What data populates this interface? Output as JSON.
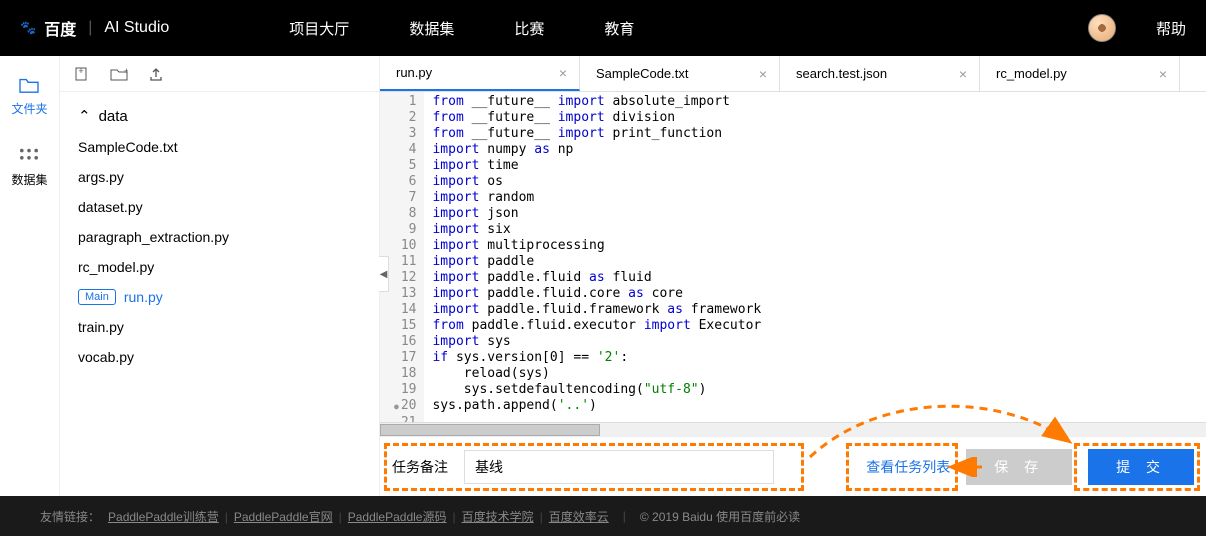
{
  "colors": {
    "accent": "#1a73e8",
    "highlight_border": "#ff7a00",
    "nav_bg": "#000000",
    "footer_bg": "#1a1a1a"
  },
  "nav": {
    "logo_baidu": "Bai度",
    "logo_text": "百度",
    "logo_studio": "AI Studio",
    "items": [
      "项目大厅",
      "数据集",
      "比赛",
      "教育"
    ],
    "help": "帮助"
  },
  "rail": {
    "files": "文件夹",
    "datasets": "数据集"
  },
  "files": {
    "folder": "data",
    "items": [
      {
        "name": "SampleCode.txt",
        "main": false,
        "active": false
      },
      {
        "name": "args.py",
        "main": false,
        "active": false
      },
      {
        "name": "dataset.py",
        "main": false,
        "active": false
      },
      {
        "name": "paragraph_extraction.py",
        "main": false,
        "active": false
      },
      {
        "name": "rc_model.py",
        "main": false,
        "active": false
      },
      {
        "name": "run.py",
        "main": true,
        "active": true
      },
      {
        "name": "train.py",
        "main": false,
        "active": false
      },
      {
        "name": "vocab.py",
        "main": false,
        "active": false
      }
    ],
    "main_badge": "Main"
  },
  "tabs": [
    {
      "name": "run.py",
      "active": true
    },
    {
      "name": "SampleCode.txt",
      "active": false
    },
    {
      "name": "search.test.json",
      "active": false
    },
    {
      "name": "rc_model.py",
      "active": false
    }
  ],
  "code": {
    "breakpoint_line": 20,
    "lines": [
      [
        [
          "kw",
          "from"
        ],
        [
          "",
          " __future__ "
        ],
        [
          "kw",
          "import"
        ],
        [
          "",
          " absolute_import"
        ]
      ],
      [
        [
          "kw",
          "from"
        ],
        [
          "",
          " __future__ "
        ],
        [
          "kw",
          "import"
        ],
        [
          "",
          " division"
        ]
      ],
      [
        [
          "kw",
          "from"
        ],
        [
          "",
          " __future__ "
        ],
        [
          "kw",
          "import"
        ],
        [
          "",
          " print_function"
        ]
      ],
      [
        [
          "",
          ""
        ]
      ],
      [
        [
          "kw",
          "import"
        ],
        [
          "",
          " numpy "
        ],
        [
          "kw",
          "as"
        ],
        [
          "",
          " np"
        ]
      ],
      [
        [
          "kw",
          "import"
        ],
        [
          "",
          " time"
        ]
      ],
      [
        [
          "kw",
          "import"
        ],
        [
          "",
          " os"
        ]
      ],
      [
        [
          "kw",
          "import"
        ],
        [
          "",
          " random"
        ]
      ],
      [
        [
          "kw",
          "import"
        ],
        [
          "",
          " json"
        ]
      ],
      [
        [
          "kw",
          "import"
        ],
        [
          "",
          " six"
        ]
      ],
      [
        [
          "kw",
          "import"
        ],
        [
          "",
          " multiprocessing"
        ]
      ],
      [
        [
          "",
          ""
        ]
      ],
      [
        [
          "kw",
          "import"
        ],
        [
          "",
          " paddle"
        ]
      ],
      [
        [
          "kw",
          "import"
        ],
        [
          "",
          " paddle.fluid "
        ],
        [
          "kw",
          "as"
        ],
        [
          "",
          " fluid"
        ]
      ],
      [
        [
          "kw",
          "import"
        ],
        [
          "",
          " paddle.fluid.core "
        ],
        [
          "kw",
          "as"
        ],
        [
          "",
          " core"
        ]
      ],
      [
        [
          "kw",
          "import"
        ],
        [
          "",
          " paddle.fluid.framework "
        ],
        [
          "kw",
          "as"
        ],
        [
          "",
          " framework"
        ]
      ],
      [
        [
          "kw",
          "from"
        ],
        [
          "",
          " paddle.fluid.executor "
        ],
        [
          "kw",
          "import"
        ],
        [
          "",
          " Executor"
        ]
      ],
      [
        [
          "",
          ""
        ]
      ],
      [
        [
          "kw",
          "import"
        ],
        [
          "",
          " sys"
        ]
      ],
      [
        [
          "kw",
          "if"
        ],
        [
          "",
          " sys.version[0] == "
        ],
        [
          "str",
          "'2'"
        ],
        [
          "",
          ":"
        ]
      ],
      [
        [
          "",
          "    reload(sys)"
        ]
      ],
      [
        [
          "",
          "    sys.setdefaultencoding("
        ],
        [
          "str",
          "\"utf-8\""
        ],
        [
          "",
          ")"
        ]
      ],
      [
        [
          "",
          "sys.path.append("
        ],
        [
          "str",
          "'..'"
        ],
        [
          "",
          ")"
        ]
      ],
      [
        [
          "",
          ""
        ]
      ]
    ]
  },
  "task": {
    "label": "任务备注",
    "value": "基线",
    "view_list": "查看任务列表",
    "save": "保 存",
    "submit": "提 交"
  },
  "footer": {
    "label": "友情链接：",
    "links": [
      "PaddlePaddle训练营",
      "PaddlePaddle官网",
      "PaddlePaddle源码",
      "百度技术学院",
      "百度效率云"
    ],
    "copyright": "© 2019 Baidu 使用百度前必读"
  }
}
